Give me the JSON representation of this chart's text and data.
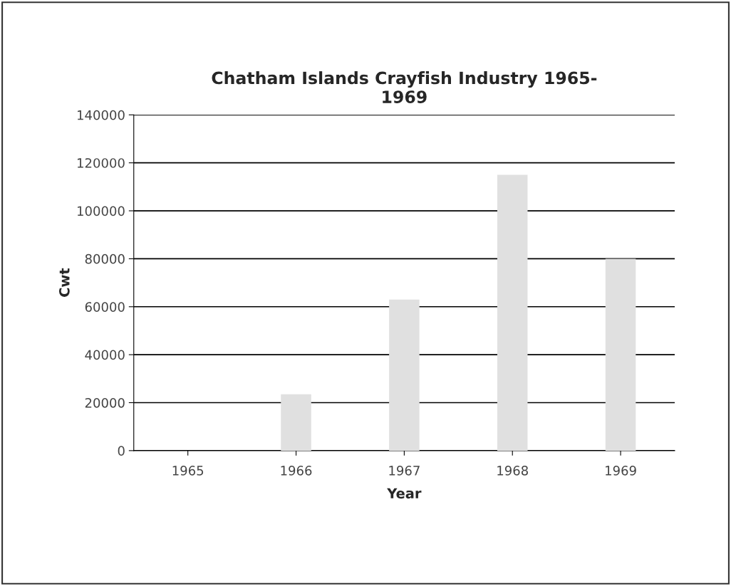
{
  "chart_data": {
    "type": "bar",
    "title": "Chatham Islands Crayfish Industry 1965-\n1969",
    "xlabel": "Year",
    "ylabel": "Cwt",
    "categories": [
      "1965",
      "1966",
      "1967",
      "1968",
      "1969"
    ],
    "values": [
      null,
      23500,
      63000,
      115000,
      80000
    ],
    "color": "#e0e0e0",
    "ylim": [
      0,
      140000
    ],
    "yticks": [
      0,
      20000,
      40000,
      60000,
      80000,
      100000,
      120000,
      140000
    ],
    "grid": "y"
  }
}
